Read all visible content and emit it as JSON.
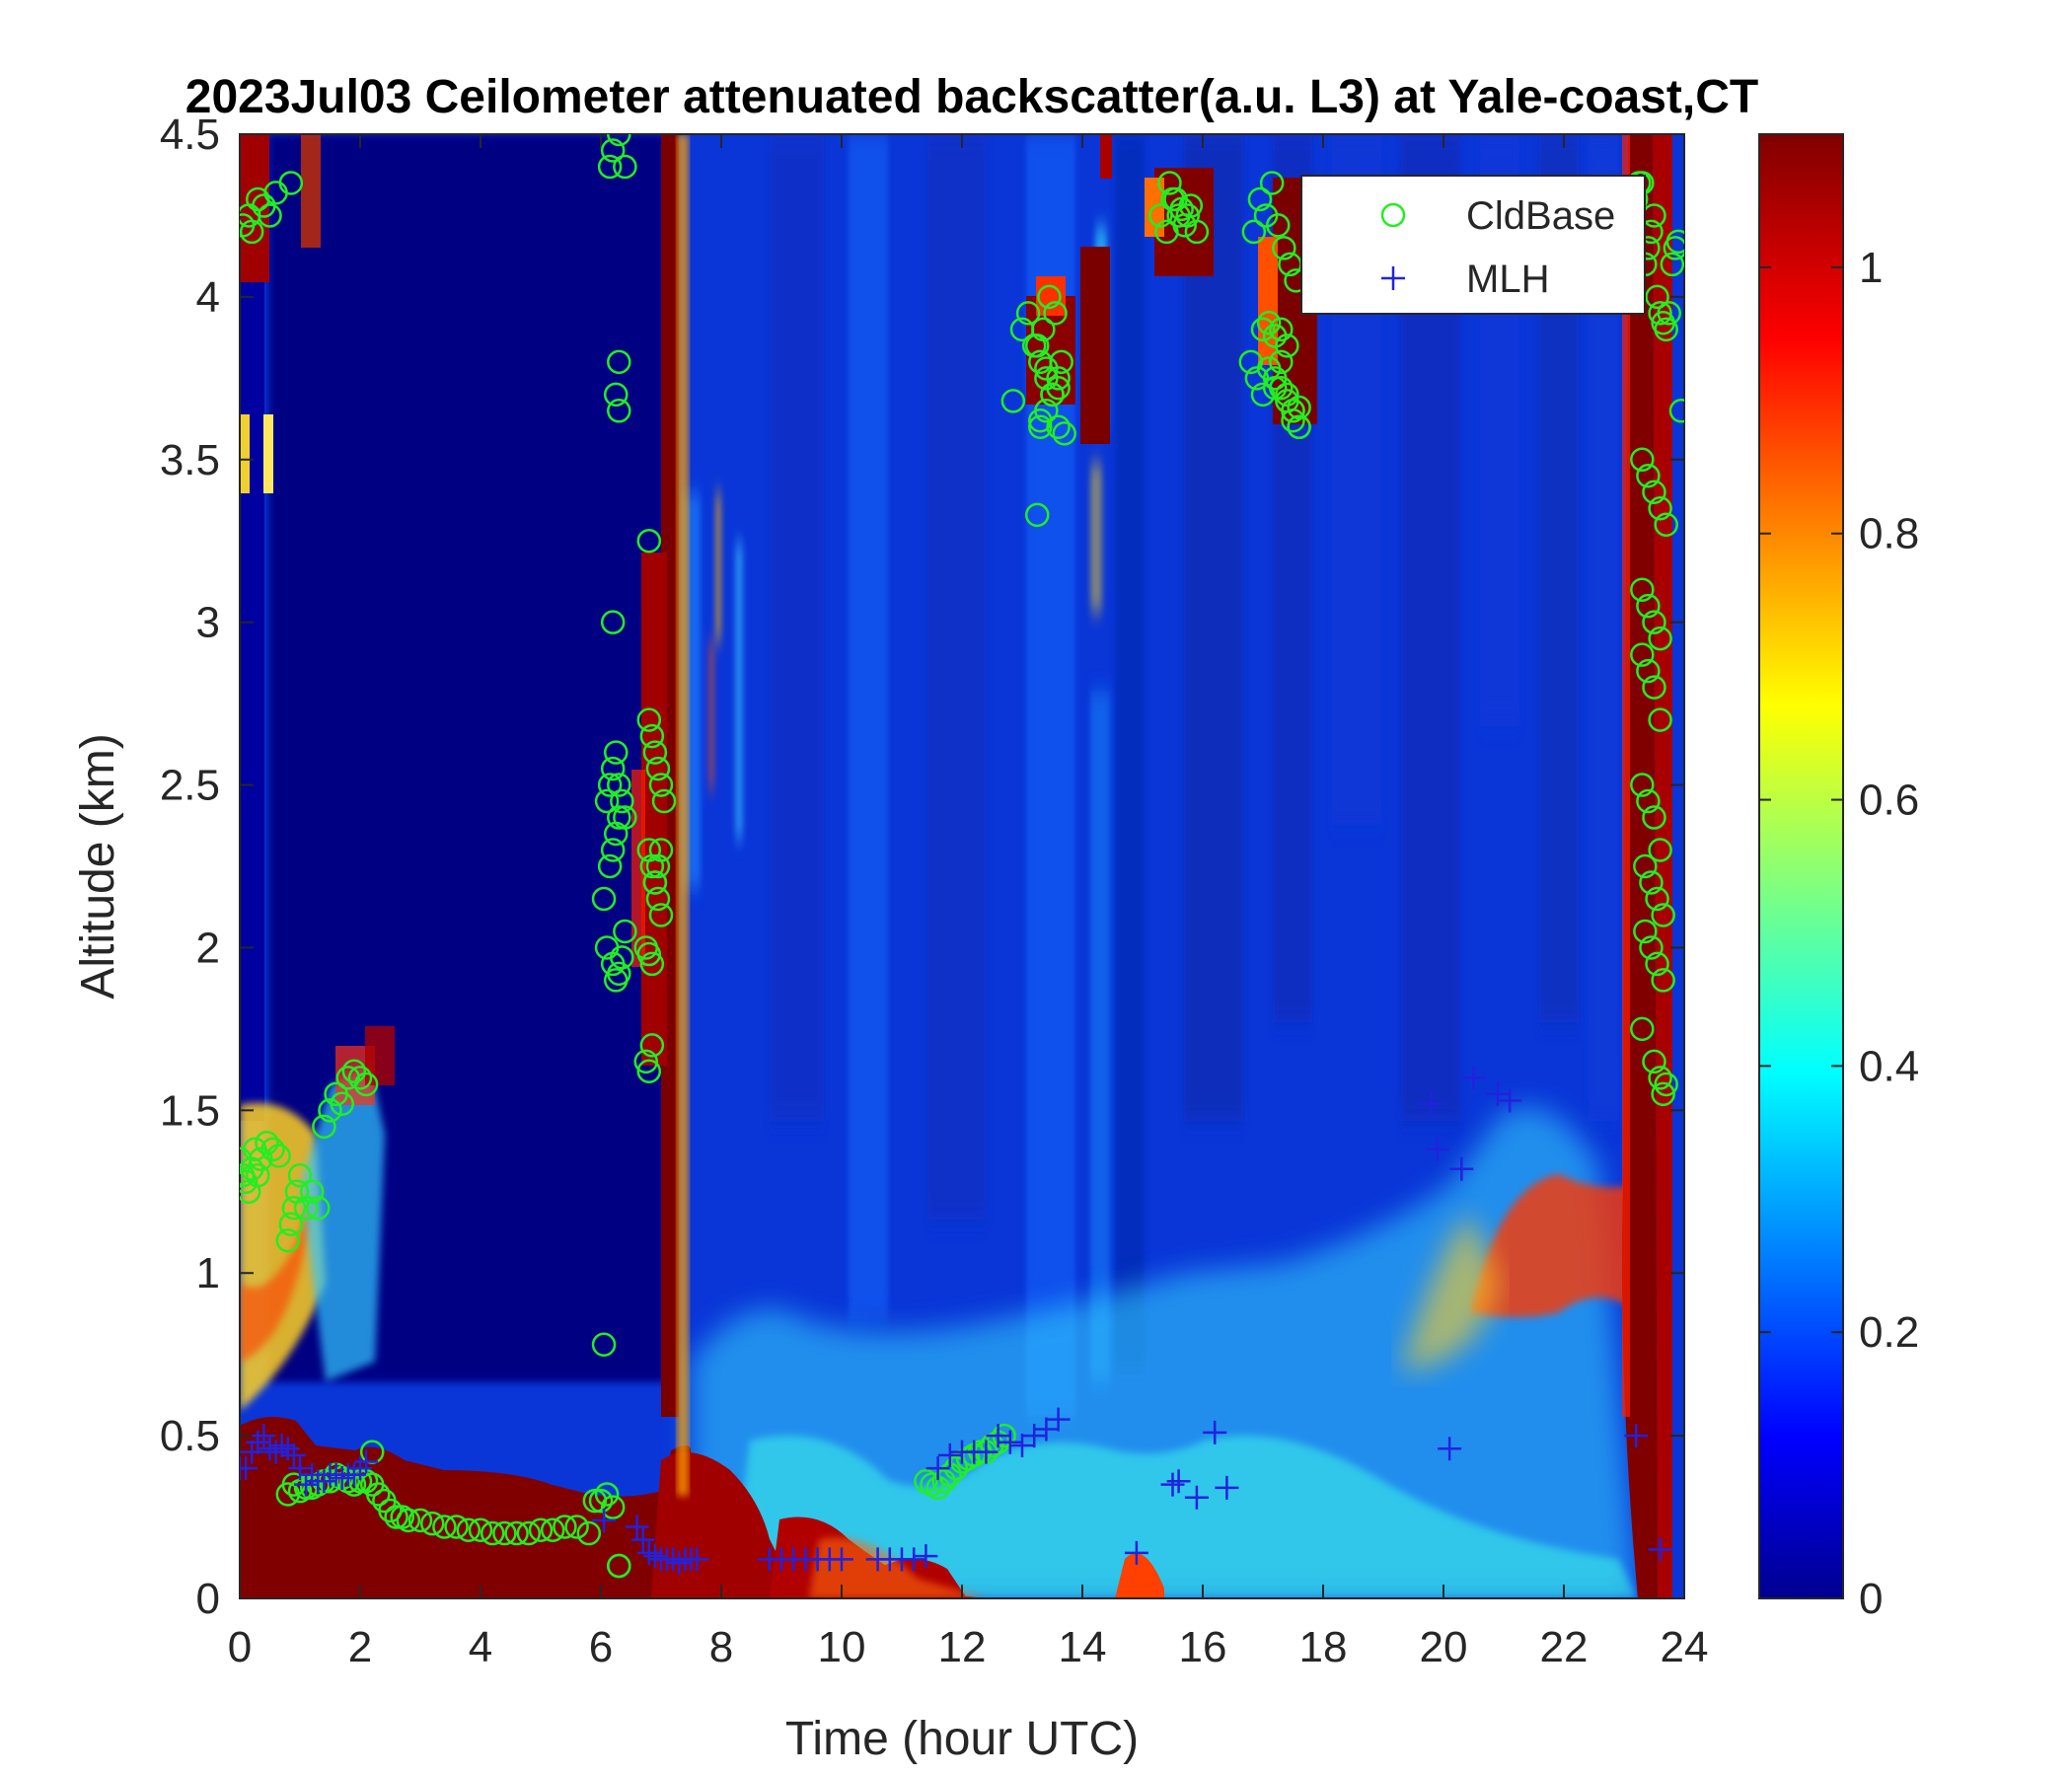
{
  "chart_data": {
    "type": "heatmap",
    "title": "2023Jul03 Ceilometer attenuated backscatter(a.u. L3) at Yale-coast,CT",
    "xlabel": "Time (hour UTC)",
    "ylabel": "Altitude (km)",
    "xlim": [
      0,
      24
    ],
    "ylim": [
      0,
      4.5
    ],
    "xticks": [
      0,
      2,
      4,
      6,
      8,
      10,
      12,
      14,
      16,
      18,
      20,
      22,
      24
    ],
    "xtick_labels": [
      "0",
      "2",
      "4",
      "6",
      "8",
      "10",
      "12",
      "14",
      "16",
      "18",
      "20",
      "22",
      "24"
    ],
    "yticks": [
      0,
      0.5,
      1,
      1.5,
      2,
      2.5,
      3,
      3.5,
      4,
      4.5
    ],
    "ytick_labels": [
      "0",
      "0.5",
      "1",
      "1.5",
      "2",
      "2.5",
      "3",
      "3.5",
      "4",
      "4.5"
    ],
    "colormap": "jet",
    "clim": [
      0,
      1.1
    ],
    "colorbar_ticks": [
      0,
      0.2,
      0.4,
      0.6,
      0.8,
      1
    ],
    "colorbar_tick_labels": [
      "0",
      "0.2",
      "0.4",
      "0.6",
      "0.8",
      "1"
    ],
    "legend": {
      "placement": "top-right",
      "entries": [
        {
          "label": "CldBase",
          "marker": "open-circle",
          "color": "#22ee22"
        },
        {
          "label": "MLH",
          "marker": "plus",
          "color": "#2222dd"
        }
      ]
    },
    "series": [
      {
        "name": "CldBase",
        "x": [
          0.0,
          0.05,
          0.1,
          0.15,
          0.2,
          0.25,
          0.3,
          0.35,
          0.45,
          0.55,
          0.65,
          0.8,
          0.85,
          0.9,
          0.95,
          1.0,
          1.1,
          1.2,
          1.3,
          1.4,
          1.5,
          1.6,
          1.7,
          1.8,
          1.9,
          2.0,
          2.1,
          2.2,
          0.05,
          0.15,
          0.2,
          0.3,
          0.4,
          0.5,
          0.6,
          0.85,
          0.8,
          0.9,
          1.0,
          1.1,
          1.2,
          1.3,
          1.4,
          1.5,
          1.6,
          1.7,
          1.8,
          1.9,
          2.0,
          2.1,
          2.2,
          2.3,
          2.4,
          2.5,
          2.6,
          2.7,
          2.8,
          3.0,
          3.2,
          3.4,
          3.6,
          3.8,
          4.0,
          4.2,
          4.4,
          4.6,
          4.8,
          5.0,
          5.2,
          5.4,
          5.6,
          5.8,
          5.9,
          6.0,
          6.1,
          6.2,
          6.3,
          6.05,
          6.15,
          6.2,
          6.25,
          6.3,
          6.1,
          6.15,
          6.2,
          6.25,
          6.3,
          6.35,
          6.4,
          6.1,
          6.2,
          6.25,
          6.3,
          6.35,
          6.4,
          6.15,
          6.2,
          6.3,
          6.4,
          6.8,
          6.85,
          6.9,
          6.95,
          7.0,
          7.05,
          6.8,
          6.85,
          6.9,
          6.95,
          7.0,
          6.75,
          6.8,
          6.85,
          6.9,
          6.95,
          7.0,
          6.75,
          6.8,
          6.85,
          6.25,
          6.3,
          6.2,
          6.3,
          6.8,
          6.05,
          6.3,
          11.4,
          11.5,
          11.6,
          11.7,
          11.8,
          11.9,
          12.0,
          12.1,
          12.2,
          12.3,
          12.4,
          12.5,
          12.6,
          12.7,
          12.85,
          13.0,
          13.1,
          13.2,
          13.3,
          13.4,
          13.5,
          13.6,
          13.7,
          13.25,
          13.35,
          13.45,
          13.55,
          13.65,
          13.3,
          13.4,
          13.5,
          13.6,
          13.5,
          13.6,
          13.4,
          13.3,
          13.25,
          15.3,
          15.4,
          15.5,
          15.6,
          15.7,
          15.8,
          15.9,
          15.45,
          15.55,
          15.65,
          15.75,
          16.8,
          16.9,
          17.0,
          17.1,
          17.2,
          17.3,
          17.4,
          17.5,
          17.6,
          16.85,
          16.95,
          17.05,
          17.15,
          17.25,
          17.35,
          17.45,
          17.55,
          17.2,
          17.3,
          17.4,
          17.5,
          17.6,
          17.0,
          17.1,
          17.2,
          17.3,
          17.4,
          17.5,
          17.6,
          23.2,
          23.25,
          23.3,
          23.35,
          23.4,
          23.45,
          23.5,
          23.55,
          23.6,
          23.65,
          23.7,
          23.75,
          23.8,
          23.85,
          23.9,
          23.95,
          23.3,
          23.4,
          23.5,
          23.6,
          23.7,
          23.3,
          23.4,
          23.5,
          23.6,
          23.3,
          23.4,
          23.5,
          23.6,
          23.3,
          23.4,
          23.5,
          23.6,
          23.35,
          23.45,
          23.55,
          23.65,
          23.35,
          23.45,
          23.55,
          23.65,
          23.3,
          23.5,
          23.6,
          23.65,
          23.7
        ],
        "y": [
          1.35,
          1.3,
          1.28,
          1.25,
          1.32,
          1.38,
          1.3,
          1.35,
          1.4,
          1.38,
          1.36,
          1.1,
          1.15,
          1.2,
          1.25,
          1.3,
          1.2,
          1.25,
          1.2,
          1.45,
          1.5,
          1.55,
          1.52,
          1.6,
          1.62,
          1.6,
          1.58,
          0.45,
          4.22,
          4.25,
          4.2,
          4.3,
          4.28,
          4.25,
          4.32,
          4.35,
          0.32,
          0.35,
          0.33,
          0.34,
          0.34,
          0.35,
          0.36,
          0.36,
          0.38,
          0.37,
          0.36,
          0.35,
          0.36,
          0.36,
          0.35,
          0.32,
          0.3,
          0.27,
          0.25,
          0.25,
          0.24,
          0.24,
          0.23,
          0.22,
          0.22,
          0.21,
          0.21,
          0.2,
          0.2,
          0.2,
          0.2,
          0.21,
          0.21,
          0.22,
          0.22,
          0.2,
          0.3,
          0.3,
          0.32,
          0.28,
          0.1,
          2.15,
          2.25,
          2.3,
          2.35,
          2.4,
          2.45,
          2.5,
          2.55,
          2.6,
          2.5,
          2.45,
          2.4,
          2.0,
          1.95,
          1.9,
          1.92,
          1.97,
          2.05,
          4.4,
          4.45,
          4.5,
          4.4,
          2.7,
          2.65,
          2.6,
          2.55,
          2.5,
          2.45,
          2.3,
          2.25,
          2.2,
          2.15,
          2.1,
          2.0,
          1.98,
          1.95,
          2.2,
          2.25,
          2.3,
          1.65,
          1.62,
          1.7,
          3.7,
          3.65,
          3.0,
          3.8,
          3.25,
          0.78,
          0.1,
          0.36,
          0.35,
          0.34,
          0.36,
          0.38,
          0.4,
          0.42,
          0.43,
          0.44,
          0.45,
          0.45,
          0.47,
          0.48,
          0.5,
          3.68,
          3.9,
          3.95,
          3.85,
          3.8,
          3.75,
          3.7,
          3.6,
          3.58,
          3.85,
          3.9,
          4.0,
          3.95,
          3.8,
          3.62,
          3.65,
          3.7,
          3.72,
          3.7,
          3.75,
          3.78,
          3.6,
          3.33,
          4.25,
          4.2,
          4.3,
          4.25,
          4.22,
          4.28,
          4.2,
          4.35,
          4.3,
          4.27,
          4.25,
          3.8,
          3.75,
          3.7,
          3.78,
          3.72,
          3.9,
          3.85,
          3.65,
          3.6,
          4.2,
          4.3,
          4.25,
          4.35,
          4.22,
          4.15,
          4.1,
          4.05,
          3.75,
          3.8,
          3.7,
          3.65,
          3.6,
          3.9,
          3.92,
          3.88,
          3.72,
          3.68,
          3.62,
          3.66,
          4.3,
          4.35,
          4.35,
          4.1,
          4.15,
          4.2,
          4.25,
          4.0,
          3.95,
          3.92,
          3.9,
          3.95,
          4.1,
          4.15,
          4.17,
          3.65,
          3.5,
          3.45,
          3.4,
          3.35,
          3.3,
          3.1,
          3.05,
          3.0,
          2.95,
          2.9,
          2.85,
          2.8,
          2.7,
          2.5,
          2.45,
          2.4,
          2.3,
          2.25,
          2.2,
          2.15,
          2.1,
          2.05,
          2.0,
          1.95,
          1.9,
          1.75,
          1.65,
          1.6,
          1.55,
          1.58
        ]
      },
      {
        "name": "MLH",
        "x": [
          0.0,
          0.1,
          0.2,
          0.3,
          0.4,
          0.5,
          0.6,
          0.7,
          0.8,
          0.9,
          1.0,
          1.1,
          1.2,
          1.3,
          1.4,
          1.5,
          1.6,
          1.7,
          1.8,
          1.9,
          2.0,
          2.1,
          6.05,
          6.6,
          6.7,
          6.8,
          6.9,
          7.0,
          7.1,
          7.2,
          7.3,
          7.4,
          7.5,
          7.6,
          8.8,
          9.0,
          9.2,
          9.4,
          9.6,
          9.8,
          10.0,
          10.6,
          10.8,
          11.0,
          11.2,
          11.4,
          11.6,
          11.8,
          12.0,
          12.2,
          12.4,
          12.6,
          12.8,
          13.0,
          13.2,
          13.4,
          13.6,
          14.9,
          15.5,
          15.6,
          15.9,
          16.2,
          16.4,
          19.8,
          19.9,
          20.1,
          20.3,
          20.5,
          20.9,
          21.1,
          23.2,
          23.6
        ],
        "y": [
          0.4,
          0.4,
          0.45,
          0.48,
          0.5,
          0.46,
          0.45,
          0.47,
          0.46,
          0.44,
          0.4,
          0.35,
          0.38,
          0.36,
          0.36,
          0.38,
          0.38,
          0.37,
          0.38,
          0.38,
          0.4,
          0.42,
          0.24,
          0.22,
          0.18,
          0.14,
          0.13,
          0.12,
          0.12,
          0.12,
          0.11,
          0.12,
          0.12,
          0.12,
          0.12,
          0.12,
          0.12,
          0.12,
          0.12,
          0.12,
          0.12,
          0.12,
          0.12,
          0.12,
          0.12,
          0.13,
          0.4,
          0.44,
          0.45,
          0.45,
          0.45,
          0.5,
          0.48,
          0.47,
          0.5,
          0.52,
          0.55,
          0.14,
          0.35,
          0.36,
          0.31,
          0.51,
          0.34,
          1.52,
          1.38,
          0.46,
          1.32,
          1.6,
          1.55,
          1.53,
          0.5,
          0.15
        ]
      }
    ]
  }
}
